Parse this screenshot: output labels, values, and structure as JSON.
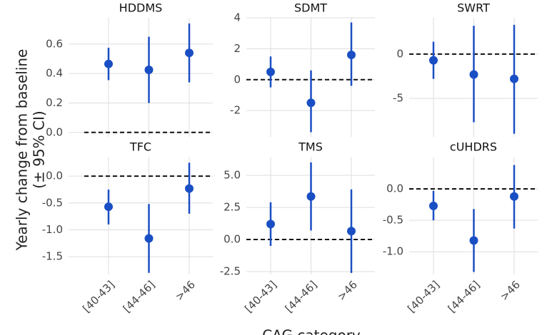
{
  "ylabel": [
    "Yearly change from baseline",
    "(± 95% CI)"
  ],
  "xlabel": "CAG category",
  "categories": [
    "[40-43]",
    "[44-46]",
    ">46"
  ],
  "chart_data": [
    {
      "type": "errorbar",
      "title": "HDDMS",
      "color": "#1a4fc4",
      "grid": true,
      "refline": 0,
      "values": [
        0.465,
        0.425,
        0.54
      ],
      "ci_low": [
        0.355,
        0.2,
        0.34
      ],
      "ci_high": [
        0.575,
        0.65,
        0.74
      ],
      "ylim": [
        -0.03,
        0.778
      ],
      "yticks": [
        {
          "value": 0,
          "label": "0.0"
        },
        0.2,
        0.4,
        0.6
      ]
    },
    {
      "type": "errorbar",
      "title": "SDMT",
      "color": "#1a4fc4",
      "grid": true,
      "refline": 0,
      "values": [
        0.5,
        -1.5,
        1.6
      ],
      "ci_low": [
        -0.5,
        -3.4,
        -0.4
      ],
      "ci_high": [
        1.5,
        0.6,
        3.7
      ],
      "ylim": [
        -3.7,
        4
      ],
      "yticks": [
        -2,
        0,
        2,
        4
      ]
    },
    {
      "type": "errorbar",
      "title": "SWRT",
      "color": "#1a4fc4",
      "grid": true,
      "refline": 0,
      "values": [
        -0.7,
        -2.3,
        -2.8
      ],
      "ci_low": [
        -2.8,
        -7.7,
        -9.0
      ],
      "ci_high": [
        1.4,
        3.2,
        3.3
      ],
      "ylim": [
        -9.35,
        4.1
      ],
      "yticks": [
        -5,
        0
      ]
    },
    {
      "type": "errorbar",
      "title": "TFC",
      "color": "#1a4fc4",
      "grid": true,
      "refline": 0,
      "values": [
        -0.57,
        -1.16,
        -0.23
      ],
      "ci_low": [
        -0.9,
        -1.8,
        -0.7
      ],
      "ci_high": [
        -0.25,
        -0.52,
        0.25
      ],
      "ylim": [
        -1.83,
        0.36
      ],
      "yticks": [
        {
          "value": -1.5,
          "label": "-1.5"
        },
        {
          "value": -1,
          "label": "-1.0"
        },
        {
          "value": -0.5,
          "label": "-0.5"
        },
        {
          "value": 0,
          "label": "0.0"
        }
      ]
    },
    {
      "type": "errorbar",
      "title": "TMS",
      "color": "#1a4fc4",
      "grid": true,
      "refline": 0,
      "values": [
        1.2,
        3.35,
        0.65
      ],
      "ci_low": [
        -0.5,
        0.7,
        -2.6
      ],
      "ci_high": [
        2.9,
        6.0,
        3.9
      ],
      "ylim": [
        -2.72,
        6.44
      ],
      "yticks": [
        {
          "value": -2.5,
          "label": "-2.5"
        },
        {
          "value": 0,
          "label": "0.0"
        },
        2.5,
        {
          "value": 5,
          "label": "5.0"
        }
      ]
    },
    {
      "type": "errorbar",
      "title": "cUHDRS",
      "color": "#1a4fc4",
      "grid": true,
      "refline": 0,
      "values": [
        -0.27,
        -0.82,
        -0.12
      ],
      "ci_low": [
        -0.5,
        -1.32,
        -0.63
      ],
      "ci_high": [
        -0.03,
        -0.32,
        0.38
      ],
      "ylim": [
        -1.36,
        0.51
      ],
      "yticks": [
        {
          "value": -1,
          "label": "-1.0"
        },
        {
          "value": -0.5,
          "label": "-0.5"
        },
        {
          "value": 0,
          "label": "0.0"
        }
      ]
    }
  ]
}
